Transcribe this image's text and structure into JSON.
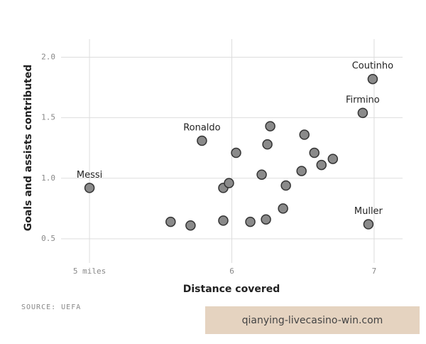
{
  "chart_data": {
    "type": "scatter",
    "x_label": "Distance covered",
    "y_label": "Goals and assists contributed",
    "source": "SOURCE: UEFA",
    "watermark": "qianying-livecasino-win.com",
    "color": "#8a8a8a",
    "grid": true,
    "xlim": [
      4.8,
      7.2
    ],
    "ylim": [
      0.3,
      2.15
    ],
    "xticks": [
      {
        "value": 5,
        "label": "5 miles"
      },
      6,
      7
    ],
    "yticks": [
      {
        "value": 0.5,
        "label": "0.5"
      },
      {
        "value": 1,
        "label": "1.0"
      },
      {
        "value": 1.5,
        "label": "1.5"
      },
      {
        "value": 2,
        "label": "2.0"
      }
    ],
    "x": [
      5.0,
      5.57,
      5.71,
      5.79,
      5.94,
      5.94,
      5.98,
      6.03,
      6.13,
      6.21,
      6.24,
      6.25,
      6.27,
      6.36,
      6.38,
      6.49,
      6.51,
      6.58,
      6.63,
      6.71,
      6.92,
      6.99,
      6.96
    ],
    "y": [
      0.92,
      0.64,
      0.61,
      1.31,
      0.65,
      0.92,
      0.96,
      1.21,
      0.64,
      1.03,
      0.66,
      1.28,
      1.43,
      0.75,
      0.94,
      1.06,
      1.36,
      1.21,
      1.11,
      1.16,
      1.54,
      1.82,
      0.62
    ],
    "point_labels": [
      "Messi",
      null,
      null,
      "Ronaldo",
      null,
      null,
      null,
      null,
      null,
      null,
      null,
      null,
      null,
      null,
      null,
      null,
      null,
      null,
      null,
      null,
      "Firmino",
      "Coutinho",
      "Muller"
    ]
  }
}
